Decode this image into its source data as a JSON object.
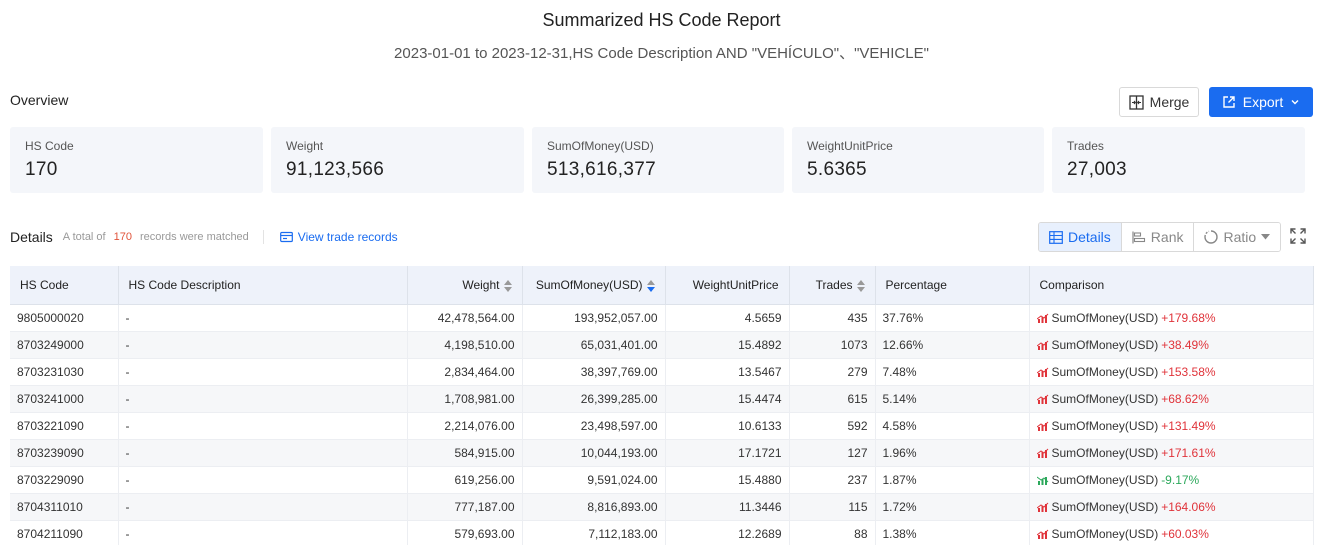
{
  "header": {
    "title": "Summarized HS Code Report",
    "subtitle": "2023-01-01 to 2023-12-31,HS Code Description AND \"VEHÍCULO\"、\"VEHICLE\""
  },
  "overview": {
    "label": "Overview",
    "merge_label": "Merge",
    "export_label": "Export",
    "cards": [
      {
        "label": "HS Code",
        "value": "170"
      },
      {
        "label": "Weight",
        "value": "91,123,566"
      },
      {
        "label": "SumOfMoney(USD)",
        "value": "513,616,377"
      },
      {
        "label": "WeightUnitPrice",
        "value": "5.6365"
      },
      {
        "label": "Trades",
        "value": "27,003"
      }
    ]
  },
  "details": {
    "title": "Details",
    "total_prefix": "A total of",
    "total_count": "170",
    "total_suffix": "records were matched",
    "view_link": "View trade records",
    "view_tabs": {
      "details": "Details",
      "rank": "Rank",
      "ratio": "Ratio"
    }
  },
  "table": {
    "columns": [
      "HS Code",
      "HS Code Description",
      "Weight",
      "SumOfMoney(USD)",
      "WeightUnitPrice",
      "Trades",
      "Percentage",
      "Comparison"
    ],
    "rows": [
      {
        "code": "9805000020",
        "desc": "-",
        "weight": "42,478,564.00",
        "money": "193,952,057.00",
        "unit": "4.5659",
        "trades": "435",
        "pct": "37.76%",
        "cmp_label": "SumOfMoney(USD)",
        "cmp_value": "+179.68%",
        "cmp_dir": "up"
      },
      {
        "code": "8703249000",
        "desc": "-",
        "weight": "4,198,510.00",
        "money": "65,031,401.00",
        "unit": "15.4892",
        "trades": "1073",
        "pct": "12.66%",
        "cmp_label": "SumOfMoney(USD)",
        "cmp_value": "+38.49%",
        "cmp_dir": "up"
      },
      {
        "code": "8703231030",
        "desc": "-",
        "weight": "2,834,464.00",
        "money": "38,397,769.00",
        "unit": "13.5467",
        "trades": "279",
        "pct": "7.48%",
        "cmp_label": "SumOfMoney(USD)",
        "cmp_value": "+153.58%",
        "cmp_dir": "up"
      },
      {
        "code": "8703241000",
        "desc": "-",
        "weight": "1,708,981.00",
        "money": "26,399,285.00",
        "unit": "15.4474",
        "trades": "615",
        "pct": "5.14%",
        "cmp_label": "SumOfMoney(USD)",
        "cmp_value": "+68.62%",
        "cmp_dir": "up"
      },
      {
        "code": "8703221090",
        "desc": "-",
        "weight": "2,214,076.00",
        "money": "23,498,597.00",
        "unit": "10.6133",
        "trades": "592",
        "pct": "4.58%",
        "cmp_label": "SumOfMoney(USD)",
        "cmp_value": "+131.49%",
        "cmp_dir": "up"
      },
      {
        "code": "8703239090",
        "desc": "-",
        "weight": "584,915.00",
        "money": "10,044,193.00",
        "unit": "17.1721",
        "trades": "127",
        "pct": "1.96%",
        "cmp_label": "SumOfMoney(USD)",
        "cmp_value": "+171.61%",
        "cmp_dir": "up"
      },
      {
        "code": "8703229090",
        "desc": "-",
        "weight": "619,256.00",
        "money": "9,591,024.00",
        "unit": "15.4880",
        "trades": "237",
        "pct": "1.87%",
        "cmp_label": "SumOfMoney(USD)",
        "cmp_value": "-9.17%",
        "cmp_dir": "down"
      },
      {
        "code": "8704311010",
        "desc": "-",
        "weight": "777,187.00",
        "money": "8,816,893.00",
        "unit": "11.3446",
        "trades": "115",
        "pct": "1.72%",
        "cmp_label": "SumOfMoney(USD)",
        "cmp_value": "+164.06%",
        "cmp_dir": "up"
      },
      {
        "code": "8704211090",
        "desc": "-",
        "weight": "579,693.00",
        "money": "7,112,183.00",
        "unit": "12.2689",
        "trades": "88",
        "pct": "1.38%",
        "cmp_label": "SumOfMoney(USD)",
        "cmp_value": "+60.03%",
        "cmp_dir": "up"
      }
    ]
  },
  "colors": {
    "accent": "#1a6cf0",
    "up": "#e0333a",
    "down": "#2ca85b",
    "count": "#e0533a"
  }
}
